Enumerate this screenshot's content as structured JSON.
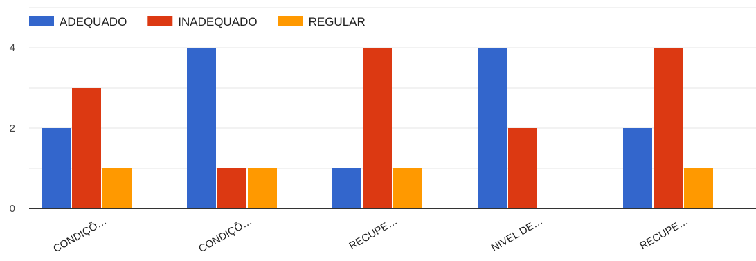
{
  "chart_data": {
    "type": "bar",
    "categories": [
      "CONDIÇÕ…",
      "CONDIÇÕ…",
      "RECUPE…",
      "NIVEL DE…",
      "RECUPE…"
    ],
    "series": [
      {
        "name": "ADEQUADO",
        "color": "#3366cc",
        "values": [
          2,
          4,
          1,
          4,
          2
        ]
      },
      {
        "name": "INADEQUADO",
        "color": "#dc3912",
        "values": [
          3,
          1,
          4,
          2,
          4
        ]
      },
      {
        "name": "REGULAR",
        "color": "#ff9900",
        "values": [
          1,
          1,
          1,
          0,
          1
        ]
      }
    ],
    "yticks": [
      "0",
      "2",
      "4"
    ],
    "ylim": [
      0,
      4
    ],
    "legend": "top-left",
    "grid": true,
    "gridline_color": "#e6e6e6",
    "baseline_color": "#333333"
  }
}
